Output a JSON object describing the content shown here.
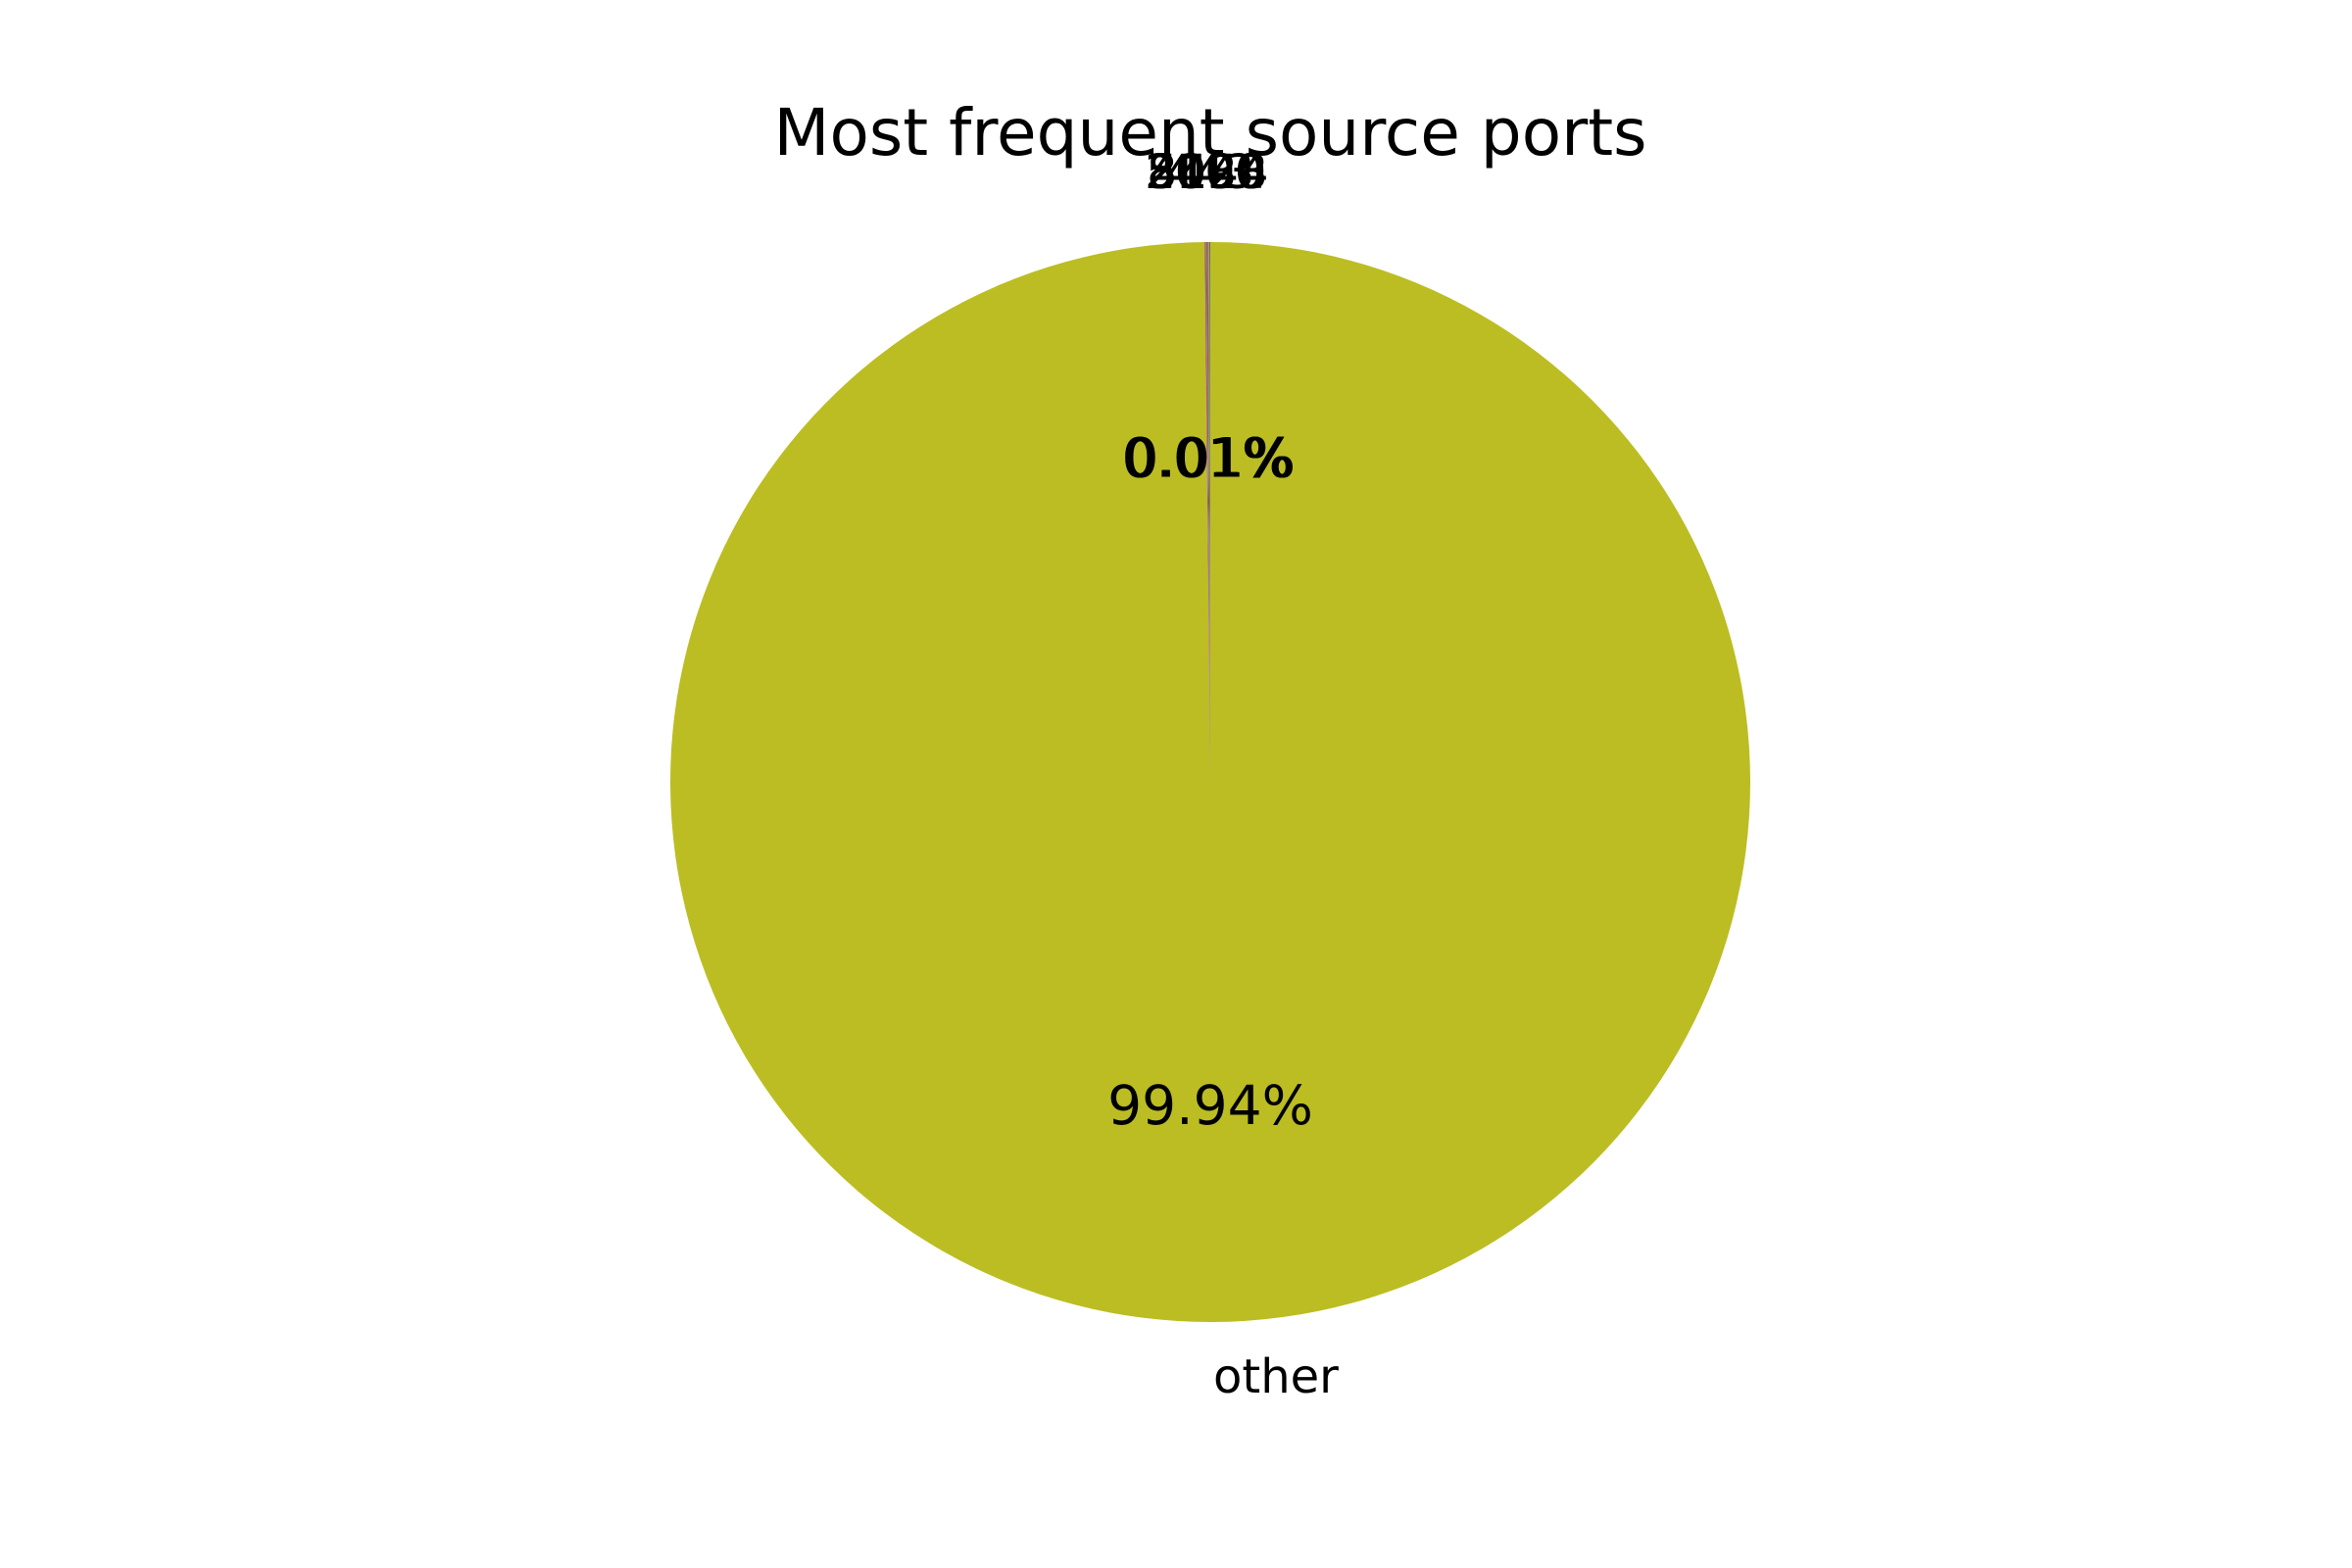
{
  "chart_data": {
    "type": "pie",
    "title": "Most frequent source ports",
    "slices": [
      {
        "label": "other",
        "percent": 99.94,
        "pct_label": "99.94%",
        "color": "#bcbd22"
      },
      {
        "label": "443",
        "percent": 0.01,
        "pct_label": "0.01%",
        "color": "#1f77b4"
      },
      {
        "label": "4444",
        "percent": 0.01,
        "pct_label": "0.01%",
        "color": "#ff7f0e"
      },
      {
        "label": "3128",
        "percent": 0.01,
        "pct_label": "0.01%",
        "color": "#2ca02c"
      },
      {
        "label": "8080",
        "percent": 0.01,
        "pct_label": "0.01%",
        "color": "#d62728"
      },
      {
        "label": "5190",
        "percent": 0.01,
        "pct_label": "0.01%",
        "color": "#9467bd"
      },
      {
        "label": "2000",
        "percent": 0.01,
        "pct_label": "0.01%",
        "color": "#8c564b"
      }
    ]
  }
}
